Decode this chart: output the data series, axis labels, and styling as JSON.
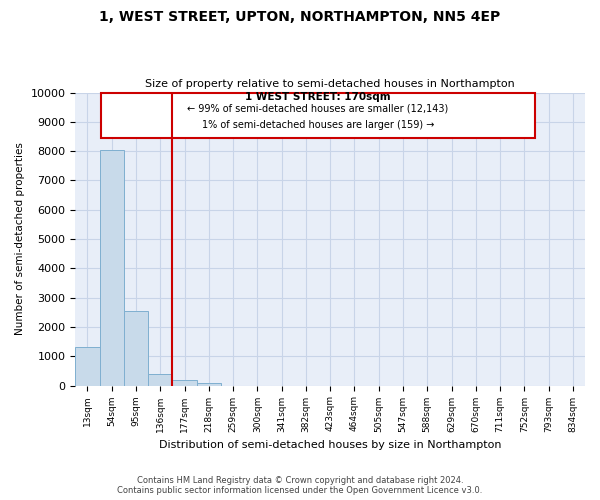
{
  "title": "1, WEST STREET, UPTON, NORTHAMPTON, NN5 4EP",
  "subtitle": "Size of property relative to semi-detached houses in Northampton",
  "xlabel": "Distribution of semi-detached houses by size in Northampton",
  "ylabel": "Number of semi-detached properties",
  "bin_labels": [
    "13sqm",
    "54sqm",
    "95sqm",
    "136sqm",
    "177sqm",
    "218sqm",
    "259sqm",
    "300sqm",
    "341sqm",
    "382sqm",
    "423sqm",
    "464sqm",
    "505sqm",
    "547sqm",
    "588sqm",
    "629sqm",
    "670sqm",
    "711sqm",
    "752sqm",
    "793sqm",
    "834sqm"
  ],
  "bar_values": [
    1300,
    8050,
    2530,
    400,
    175,
    100,
    0,
    0,
    0,
    0,
    0,
    0,
    0,
    0,
    0,
    0,
    0,
    0,
    0,
    0,
    0
  ],
  "bar_color": "#c8daea",
  "bar_edge_color": "#7fafd0",
  "ylim": [
    0,
    10000
  ],
  "yticks": [
    0,
    1000,
    2000,
    3000,
    4000,
    5000,
    6000,
    7000,
    8000,
    9000,
    10000
  ],
  "property_label": "1 WEST STREET: 170sqm",
  "annotation_line1": "← 99% of semi-detached houses are smaller (12,143)",
  "annotation_line2": "1% of semi-detached houses are larger (159) →",
  "box_color": "#ffffff",
  "box_edge_color": "#cc0000",
  "line_color": "#cc0000",
  "grid_color": "#c8d4e8",
  "background_color": "#e8eef8",
  "figure_background": "#ffffff",
  "footer_line1": "Contains HM Land Registry data © Crown copyright and database right 2024.",
  "footer_line2": "Contains public sector information licensed under the Open Government Licence v3.0."
}
